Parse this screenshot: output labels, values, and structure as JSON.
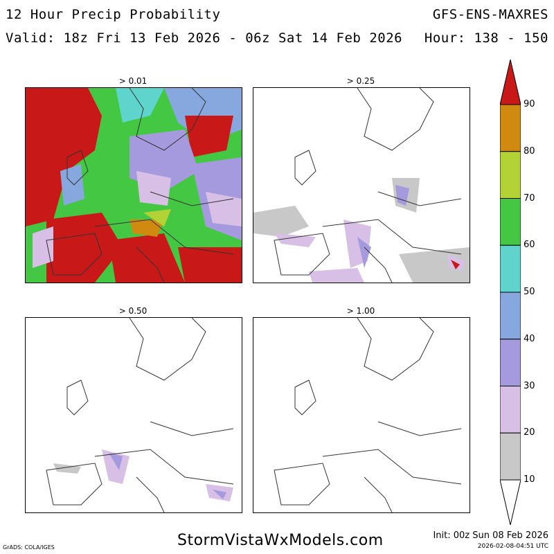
{
  "header": {
    "title": "12 Hour Precip Probability",
    "valid": "Valid: 18z Fri 13 Feb 2026 - 06z Sat 14 Feb 2026",
    "model": "GFS-ENS-MAXRES",
    "hour": "Hour: 138 - 150"
  },
  "panels": [
    {
      "label": "> 0.01",
      "coverage": "very-high"
    },
    {
      "label": "> 0.25",
      "coverage": "low"
    },
    {
      "label": "> 0.50",
      "coverage": "minimal"
    },
    {
      "label": "> 1.00",
      "coverage": "none"
    }
  ],
  "colorbar": {
    "levels": [
      "10",
      "20",
      "30",
      "40",
      "50",
      "60",
      "70",
      "80",
      "90"
    ],
    "colors": [
      "#ffffff",
      "#c8c8c8",
      "#d8bfe6",
      "#a69ade",
      "#86a8de",
      "#5fd4cc",
      "#44c844",
      "#b2d235",
      "#d08a10",
      "#c81818"
    ]
  },
  "footer": {
    "site": "StormVistaWxModels.com",
    "init": "Init: 00z Sun 08 Feb 2026",
    "stamp": "2026-02-08-04:51 UTC",
    "grads": "GrADS: COLA/IGES"
  }
}
